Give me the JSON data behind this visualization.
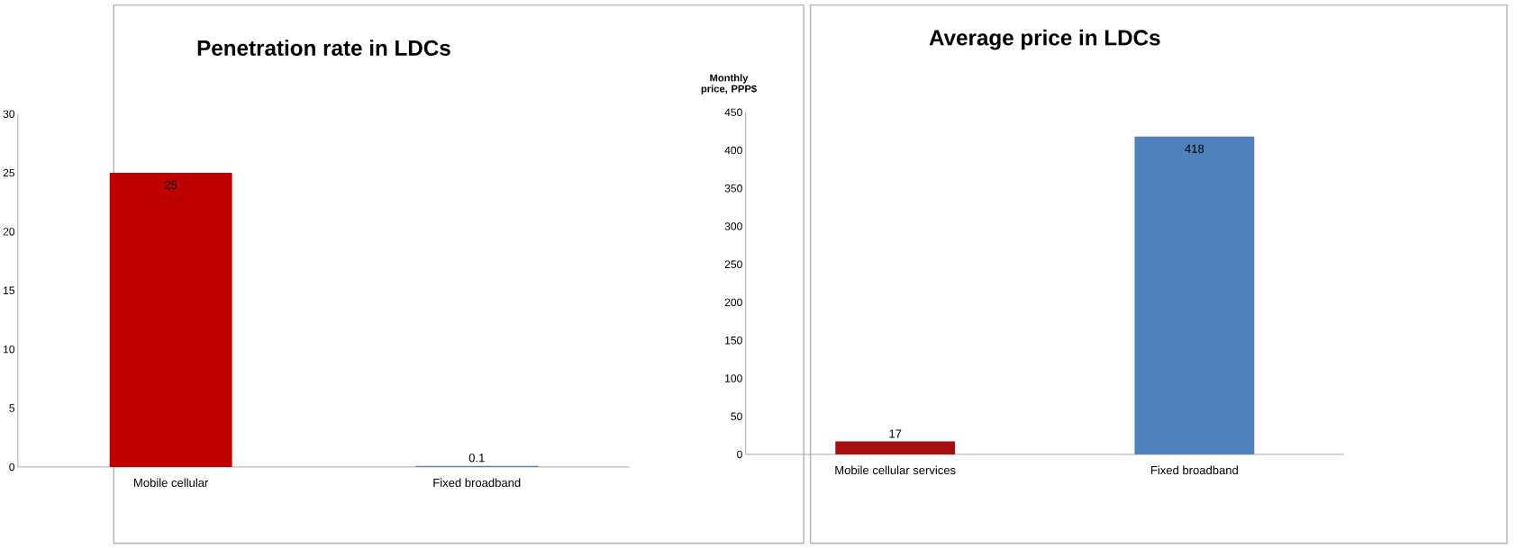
{
  "chart_data": [
    {
      "type": "bar",
      "title": "Penetration rate in LDCs",
      "categories": [
        "Mobile cellular",
        "Fixed broadband"
      ],
      "values": [
        25,
        0.1
      ],
      "colors": [
        "#c00000",
        "#4f81bd"
      ],
      "ylim": [
        0,
        30
      ],
      "yticks": [
        0,
        5,
        10,
        15,
        20,
        25,
        30
      ],
      "data_labels": true
    },
    {
      "type": "bar",
      "title": "Average price in LDCs",
      "ylabel": "Monthly price, PPP$",
      "categories": [
        "Mobile cellular services",
        "Fixed broadband"
      ],
      "values": [
        17,
        418
      ],
      "colors": [
        "#a50f0f",
        "#4f81bd"
      ],
      "ylim": [
        0,
        450
      ],
      "yticks": [
        0,
        50,
        100,
        150,
        200,
        250,
        300,
        350,
        400,
        450
      ],
      "data_labels": true
    }
  ]
}
